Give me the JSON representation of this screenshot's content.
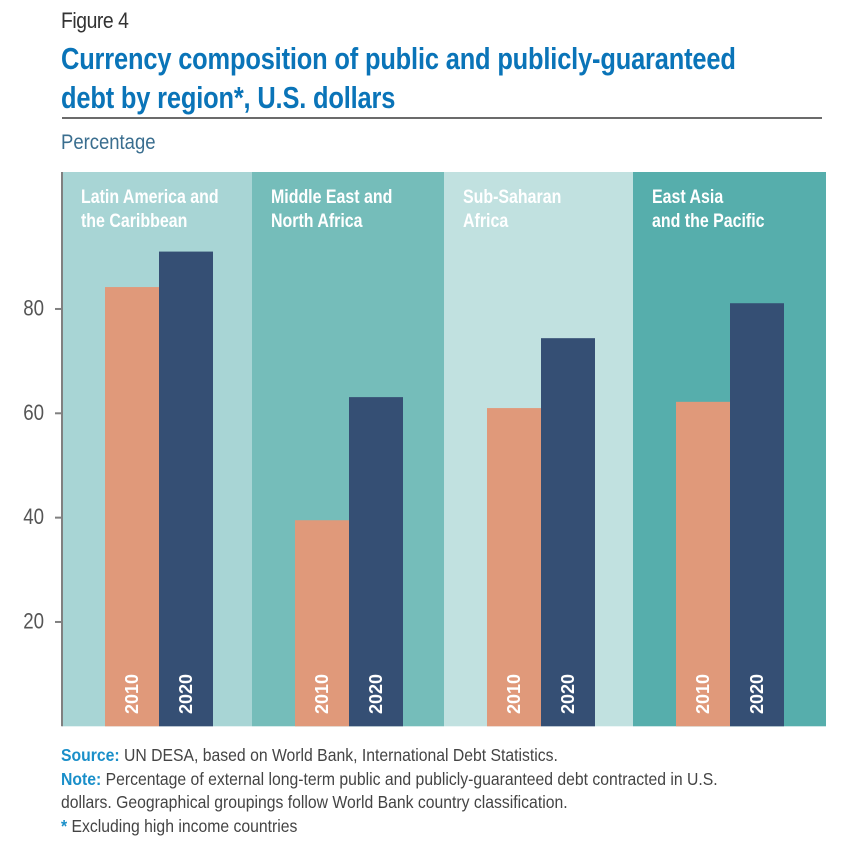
{
  "figure_label": "Figure 4",
  "title_line1": "Currency composition of public and publicly-guaranteed",
  "title_line2": "debt by region*, U.S. dollars",
  "footer": {
    "source_key": "Source:",
    "source_text": " UN DESA, based on World Bank, International Debt Statistics.",
    "note_key": "Note:",
    "note_text_line1": " Percentage of external long-term public and publicly-guaranteed debt contracted in U.S.",
    "note_text_line2": "dollars. Geographical groupings follow World Bank country classification.",
    "asterisk": "*",
    "asterisk_text": " Excluding high income countries"
  },
  "colors": {
    "title": "#0a74b8",
    "series_2010": "#e0997a",
    "series_2020": "#354f74",
    "panels": [
      "#a8d5d5",
      "#75bdba",
      "#c1e1e0",
      "#56aeac"
    ]
  },
  "chart_data": {
    "type": "bar",
    "title": "Currency composition of public and publicly-guaranteed debt by region*, U.S. dollars",
    "xlabel": "",
    "ylabel": "Percentage",
    "ylim": [
      0,
      107
    ],
    "yticks": [
      20,
      40,
      60,
      80
    ],
    "grid": false,
    "legend": "none (years labelled inside bars)",
    "categories": [
      [
        "Latin America and",
        "the Caribbean"
      ],
      [
        "Middle East and",
        "North Africa"
      ],
      [
        "Sub-Saharan",
        "Africa"
      ],
      [
        "East Asia",
        "and the Pacific"
      ]
    ],
    "series": [
      {
        "name": "2010",
        "values": [
          84.2,
          39.5,
          61.0,
          62.2
        ]
      },
      {
        "name": "2020",
        "values": [
          91.0,
          63.1,
          74.4,
          81.1
        ]
      }
    ]
  }
}
